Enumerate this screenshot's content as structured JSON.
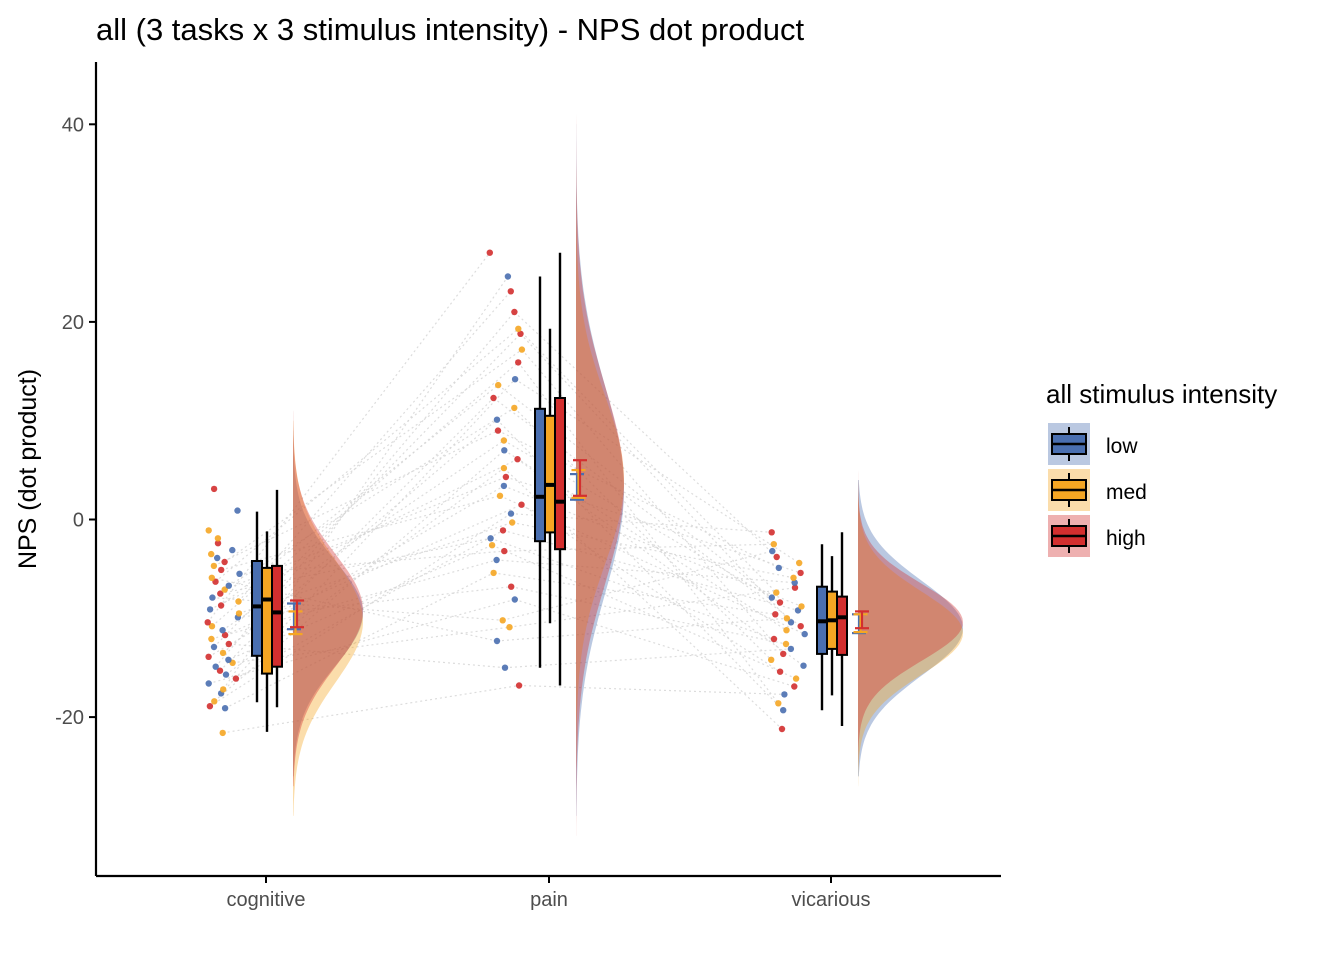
{
  "chart_data": {
    "type": "raincloud",
    "title": "all  (3 tasks x 3 stimulus intensity) - NPS dot product",
    "xlabel": "",
    "ylabel": "NPS (dot product)",
    "ylim": [
      -36,
      46
    ],
    "yticks": [
      -20,
      0,
      20,
      40
    ],
    "categories": [
      "cognitive",
      "pain",
      "vicarious"
    ],
    "grid": false,
    "legend": {
      "title": "all  stimulus intensity",
      "placement": "right",
      "entries": [
        "low",
        "med",
        "high"
      ]
    },
    "colors": {
      "low": "#4a6fb0",
      "med": "#f5a623",
      "high": "#d32f2f",
      "connector": "#d4d4d4"
    },
    "series": [
      {
        "name": "low",
        "box": [
          {
            "category": "cognitive",
            "whisker_low": -18.5,
            "q1": -13.8,
            "median": -8.8,
            "q3": -4.2,
            "whisker_high": 0.8
          },
          {
            "category": "pain",
            "whisker_low": -15,
            "q1": -2.2,
            "median": 2.3,
            "q3": 11.2,
            "whisker_high": 24.6
          },
          {
            "category": "vicarious",
            "whisker_low": -19.3,
            "q1": -13.6,
            "median": -10.3,
            "q3": -6.8,
            "whisker_high": -2.5
          }
        ],
        "mean_ci": [
          {
            "category": "cognitive",
            "mean": -9.8,
            "lower": -11.1,
            "upper": -8.5
          },
          {
            "category": "pain",
            "mean": 3.2,
            "lower": 2.0,
            "upper": 4.6
          },
          {
            "category": "vicarious",
            "mean": -10.6,
            "lower": -11.5,
            "upper": -9.6
          }
        ],
        "density": [
          {
            "category": "cognitive",
            "mu": -9.5,
            "sigma": 5.3,
            "min": -26,
            "max": 9
          },
          {
            "category": "pain",
            "mu": 3,
            "sigma": 10.5,
            "min": -30,
            "max": 40
          },
          {
            "category": "vicarious",
            "mu": -11,
            "sigma": 4.8,
            "min": -26,
            "max": 4
          }
        ]
      },
      {
        "name": "med",
        "box": [
          {
            "category": "cognitive",
            "whisker_low": -21.5,
            "q1": -15.6,
            "median": -8.1,
            "q3": -4.9,
            "whisker_high": -1.2
          },
          {
            "category": "pain",
            "whisker_low": -10.5,
            "q1": -1.3,
            "median": 3.5,
            "q3": 10.5,
            "whisker_high": 19.3
          },
          {
            "category": "vicarious",
            "whisker_low": -17.8,
            "q1": -13.1,
            "median": -10.2,
            "q3": -7.3,
            "whisker_high": -3.7
          }
        ],
        "mean_ci": [
          {
            "category": "cognitive",
            "mean": -10.5,
            "lower": -11.6,
            "upper": -9.3
          },
          {
            "category": "pain",
            "mean": 3.6,
            "lower": 2.2,
            "upper": 5.0
          },
          {
            "category": "vicarious",
            "mean": -10.5,
            "lower": -11.4,
            "upper": -9.6
          }
        ],
        "density": [
          {
            "category": "cognitive",
            "mu": -10.3,
            "sigma": 6.2,
            "min": -30,
            "max": 10
          },
          {
            "category": "pain",
            "mu": 4,
            "sigma": 8.5,
            "min": -25,
            "max": 38
          },
          {
            "category": "vicarious",
            "mu": -11.5,
            "sigma": 4.2,
            "min": -27,
            "max": 4
          }
        ]
      },
      {
        "name": "high",
        "box": [
          {
            "category": "cognitive",
            "whisker_low": -19,
            "q1": -14.9,
            "median": -9.4,
            "q3": -4.7,
            "whisker_high": 3.0
          },
          {
            "category": "pain",
            "whisker_low": -16.8,
            "q1": -3,
            "median": 1.8,
            "q3": 12.3,
            "whisker_high": 27
          },
          {
            "category": "vicarious",
            "whisker_low": -20.9,
            "q1": -13.7,
            "median": -9.9,
            "q3": -7.8,
            "whisker_high": -1.3
          }
        ],
        "mean_ci": [
          {
            "category": "cognitive",
            "mean": -9.6,
            "lower": -10.9,
            "upper": -8.2
          },
          {
            "category": "pain",
            "mean": 4.2,
            "lower": 2.4,
            "upper": 6.0
          },
          {
            "category": "vicarious",
            "mean": -10.1,
            "lower": -11.0,
            "upper": -9.3
          }
        ],
        "density": [
          {
            "category": "cognitive",
            "mu": -9.2,
            "sigma": 5.7,
            "min": -27,
            "max": 11
          },
          {
            "category": "pain",
            "mu": 3.5,
            "sigma": 10,
            "min": -32,
            "max": 43
          },
          {
            "category": "vicarious",
            "mu": -10.4,
            "sigma": 3.9,
            "min": -25,
            "max": 5
          }
        ]
      }
    ],
    "points": {
      "cognitive": [
        {
          "y": -21.6,
          "g": "med"
        },
        {
          "y": -19.1,
          "g": "low"
        },
        {
          "y": -18.9,
          "g": "high"
        },
        {
          "y": -18.4,
          "g": "med"
        },
        {
          "y": -17.6,
          "g": "low"
        },
        {
          "y": -17.2,
          "g": "med"
        },
        {
          "y": -16.6,
          "g": "low"
        },
        {
          "y": -16.1,
          "g": "high"
        },
        {
          "y": -15.7,
          "g": "low"
        },
        {
          "y": -15.3,
          "g": "high"
        },
        {
          "y": -14.9,
          "g": "low"
        },
        {
          "y": -14.5,
          "g": "med"
        },
        {
          "y": -14.2,
          "g": "low"
        },
        {
          "y": -13.9,
          "g": "high"
        },
        {
          "y": -13.5,
          "g": "med"
        },
        {
          "y": -12.9,
          "g": "low"
        },
        {
          "y": -12.6,
          "g": "high"
        },
        {
          "y": -12.1,
          "g": "med"
        },
        {
          "y": -11.7,
          "g": "high"
        },
        {
          "y": -11.2,
          "g": "low"
        },
        {
          "y": -10.8,
          "g": "med"
        },
        {
          "y": -10.4,
          "g": "high"
        },
        {
          "y": -9.9,
          "g": "low"
        },
        {
          "y": -9.5,
          "g": "med"
        },
        {
          "y": -9.1,
          "g": "low"
        },
        {
          "y": -8.7,
          "g": "high"
        },
        {
          "y": -8.3,
          "g": "med"
        },
        {
          "y": -7.9,
          "g": "low"
        },
        {
          "y": -7.5,
          "g": "high"
        },
        {
          "y": -7.1,
          "g": "med"
        },
        {
          "y": -6.7,
          "g": "low"
        },
        {
          "y": -6.3,
          "g": "high"
        },
        {
          "y": -5.9,
          "g": "med"
        },
        {
          "y": -5.5,
          "g": "low"
        },
        {
          "y": -5.1,
          "g": "high"
        },
        {
          "y": -4.7,
          "g": "med"
        },
        {
          "y": -4.3,
          "g": "high"
        },
        {
          "y": -3.9,
          "g": "low"
        },
        {
          "y": -3.5,
          "g": "med"
        },
        {
          "y": -3.1,
          "g": "low"
        },
        {
          "y": -2.4,
          "g": "high"
        },
        {
          "y": -1.9,
          "g": "med"
        },
        {
          "y": -1.1,
          "g": "med"
        },
        {
          "y": 0.9,
          "g": "low"
        },
        {
          "y": 3.1,
          "g": "high"
        }
      ],
      "pain": [
        {
          "y": -16.8,
          "g": "high"
        },
        {
          "y": -15,
          "g": "low"
        },
        {
          "y": -12.3,
          "g": "low"
        },
        {
          "y": -10.9,
          "g": "med"
        },
        {
          "y": -10.2,
          "g": "med"
        },
        {
          "y": -8.1,
          "g": "low"
        },
        {
          "y": -6.8,
          "g": "high"
        },
        {
          "y": -5.4,
          "g": "med"
        },
        {
          "y": -4.1,
          "g": "low"
        },
        {
          "y": -3.2,
          "g": "high"
        },
        {
          "y": -2.6,
          "g": "med"
        },
        {
          "y": -1.9,
          "g": "low"
        },
        {
          "y": -1.1,
          "g": "high"
        },
        {
          "y": -0.3,
          "g": "med"
        },
        {
          "y": 0.6,
          "g": "low"
        },
        {
          "y": 1.5,
          "g": "high"
        },
        {
          "y": 2.4,
          "g": "med"
        },
        {
          "y": 3.4,
          "g": "low"
        },
        {
          "y": 4.3,
          "g": "high"
        },
        {
          "y": 5.2,
          "g": "med"
        },
        {
          "y": 6.1,
          "g": "high"
        },
        {
          "y": 7.0,
          "g": "low"
        },
        {
          "y": 8.0,
          "g": "med"
        },
        {
          "y": 9.0,
          "g": "high"
        },
        {
          "y": 10.1,
          "g": "low"
        },
        {
          "y": 11.3,
          "g": "med"
        },
        {
          "y": 12.3,
          "g": "high"
        },
        {
          "y": 13.6,
          "g": "med"
        },
        {
          "y": 14.2,
          "g": "low"
        },
        {
          "y": 15.9,
          "g": "high"
        },
        {
          "y": 17.2,
          "g": "med"
        },
        {
          "y": 18.8,
          "g": "high"
        },
        {
          "y": 19.3,
          "g": "med"
        },
        {
          "y": 21.0,
          "g": "high"
        },
        {
          "y": 23.1,
          "g": "high"
        },
        {
          "y": 24.6,
          "g": "low"
        },
        {
          "y": 27.0,
          "g": "high"
        }
      ],
      "vicarious": [
        {
          "y": -21.2,
          "g": "high"
        },
        {
          "y": -19.3,
          "g": "low"
        },
        {
          "y": -18.6,
          "g": "med"
        },
        {
          "y": -17.7,
          "g": "low"
        },
        {
          "y": -16.9,
          "g": "high"
        },
        {
          "y": -16.1,
          "g": "med"
        },
        {
          "y": -15.4,
          "g": "high"
        },
        {
          "y": -14.8,
          "g": "low"
        },
        {
          "y": -14.2,
          "g": "med"
        },
        {
          "y": -13.6,
          "g": "high"
        },
        {
          "y": -13.1,
          "g": "low"
        },
        {
          "y": -12.6,
          "g": "med"
        },
        {
          "y": -12.1,
          "g": "high"
        },
        {
          "y": -11.6,
          "g": "low"
        },
        {
          "y": -11.2,
          "g": "med"
        },
        {
          "y": -10.8,
          "g": "high"
        },
        {
          "y": -10.4,
          "g": "low"
        },
        {
          "y": -10.0,
          "g": "med"
        },
        {
          "y": -9.6,
          "g": "high"
        },
        {
          "y": -9.2,
          "g": "low"
        },
        {
          "y": -8.8,
          "g": "med"
        },
        {
          "y": -8.4,
          "g": "high"
        },
        {
          "y": -7.9,
          "g": "low"
        },
        {
          "y": -7.4,
          "g": "med"
        },
        {
          "y": -6.9,
          "g": "high"
        },
        {
          "y": -6.4,
          "g": "low"
        },
        {
          "y": -5.9,
          "g": "med"
        },
        {
          "y": -5.4,
          "g": "high"
        },
        {
          "y": -4.9,
          "g": "low"
        },
        {
          "y": -4.4,
          "g": "med"
        },
        {
          "y": -3.8,
          "g": "high"
        },
        {
          "y": -3.2,
          "g": "low"
        },
        {
          "y": -2.5,
          "g": "med"
        },
        {
          "y": -1.3,
          "g": "high"
        }
      ]
    }
  }
}
